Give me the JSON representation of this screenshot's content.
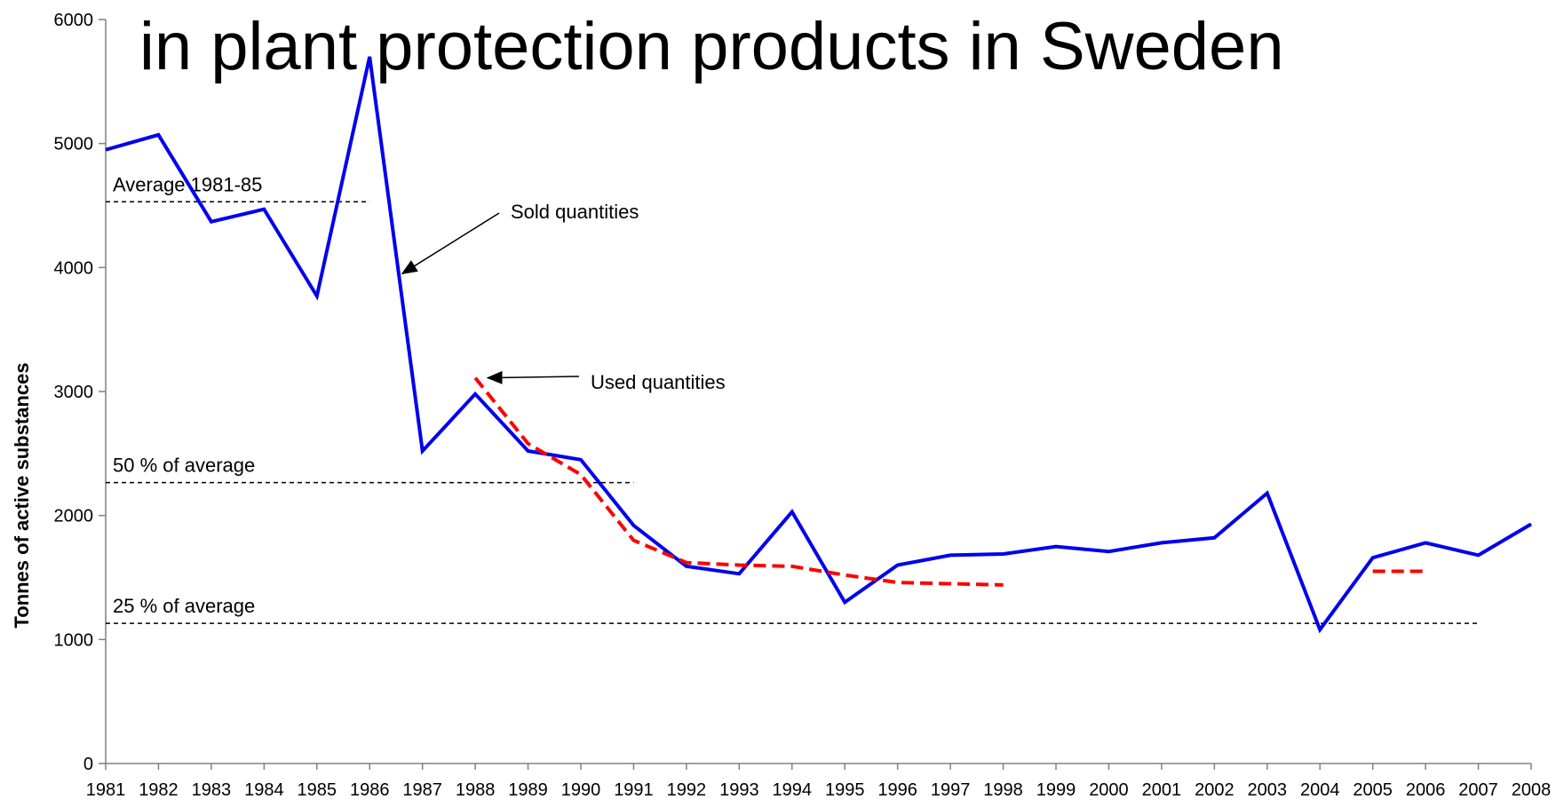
{
  "chart_data": {
    "type": "line",
    "title": "in plant protection products in Sweden",
    "xlabel": "",
    "ylabel": "Tonnes of active substances",
    "ylim": [
      0,
      6000
    ],
    "yticks": [
      0,
      1000,
      2000,
      3000,
      4000,
      5000,
      6000
    ],
    "categories": [
      "1981",
      "1982",
      "1983",
      "1984",
      "1985",
      "1986",
      "1987",
      "1988",
      "1989",
      "1990",
      "1991",
      "1992",
      "1993",
      "1994",
      "1995",
      "1996",
      "1997",
      "1998",
      "1999",
      "2000",
      "2001",
      "2002",
      "2003",
      "2004",
      "2005",
      "2006",
      "2007",
      "2008"
    ],
    "series": [
      {
        "name": "Sold quantities",
        "color": "#0000ee",
        "style": "solid",
        "values": [
          4950,
          5070,
          4370,
          4470,
          3770,
          5700,
          2520,
          2980,
          2520,
          2450,
          1920,
          1590,
          1530,
          2030,
          1300,
          1600,
          1680,
          1690,
          1750,
          1710,
          1780,
          1820,
          2180,
          1080,
          1660,
          1780,
          1680,
          1930
        ]
      },
      {
        "name": "Used quantities",
        "color": "#ff0000",
        "style": "dashed",
        "values": [
          null,
          null,
          null,
          null,
          null,
          null,
          null,
          3110,
          2580,
          2330,
          1800,
          1620,
          1600,
          1590,
          1520,
          1460,
          1450,
          1440,
          null,
          null,
          null,
          null,
          null,
          null,
          1550,
          1550,
          null,
          null
        ]
      }
    ],
    "reference_lines": [
      {
        "label": "Average 1981-85",
        "value": 4530,
        "from": "1981",
        "to": "1986"
      },
      {
        "label": "50 % of average",
        "value": 2265,
        "from": "1981",
        "to": "1991"
      },
      {
        "label": "25 % of average",
        "value": 1130,
        "from": "1981",
        "to": "2007"
      }
    ],
    "annotations": [
      {
        "text": "Sold quantities",
        "points_to_series": "Sold quantities",
        "points_to_x": "1986.5"
      },
      {
        "text": "Used quantities",
        "points_to_series": "Used quantities",
        "points_to_x": "1988"
      }
    ],
    "grid": false,
    "legend": "none"
  }
}
